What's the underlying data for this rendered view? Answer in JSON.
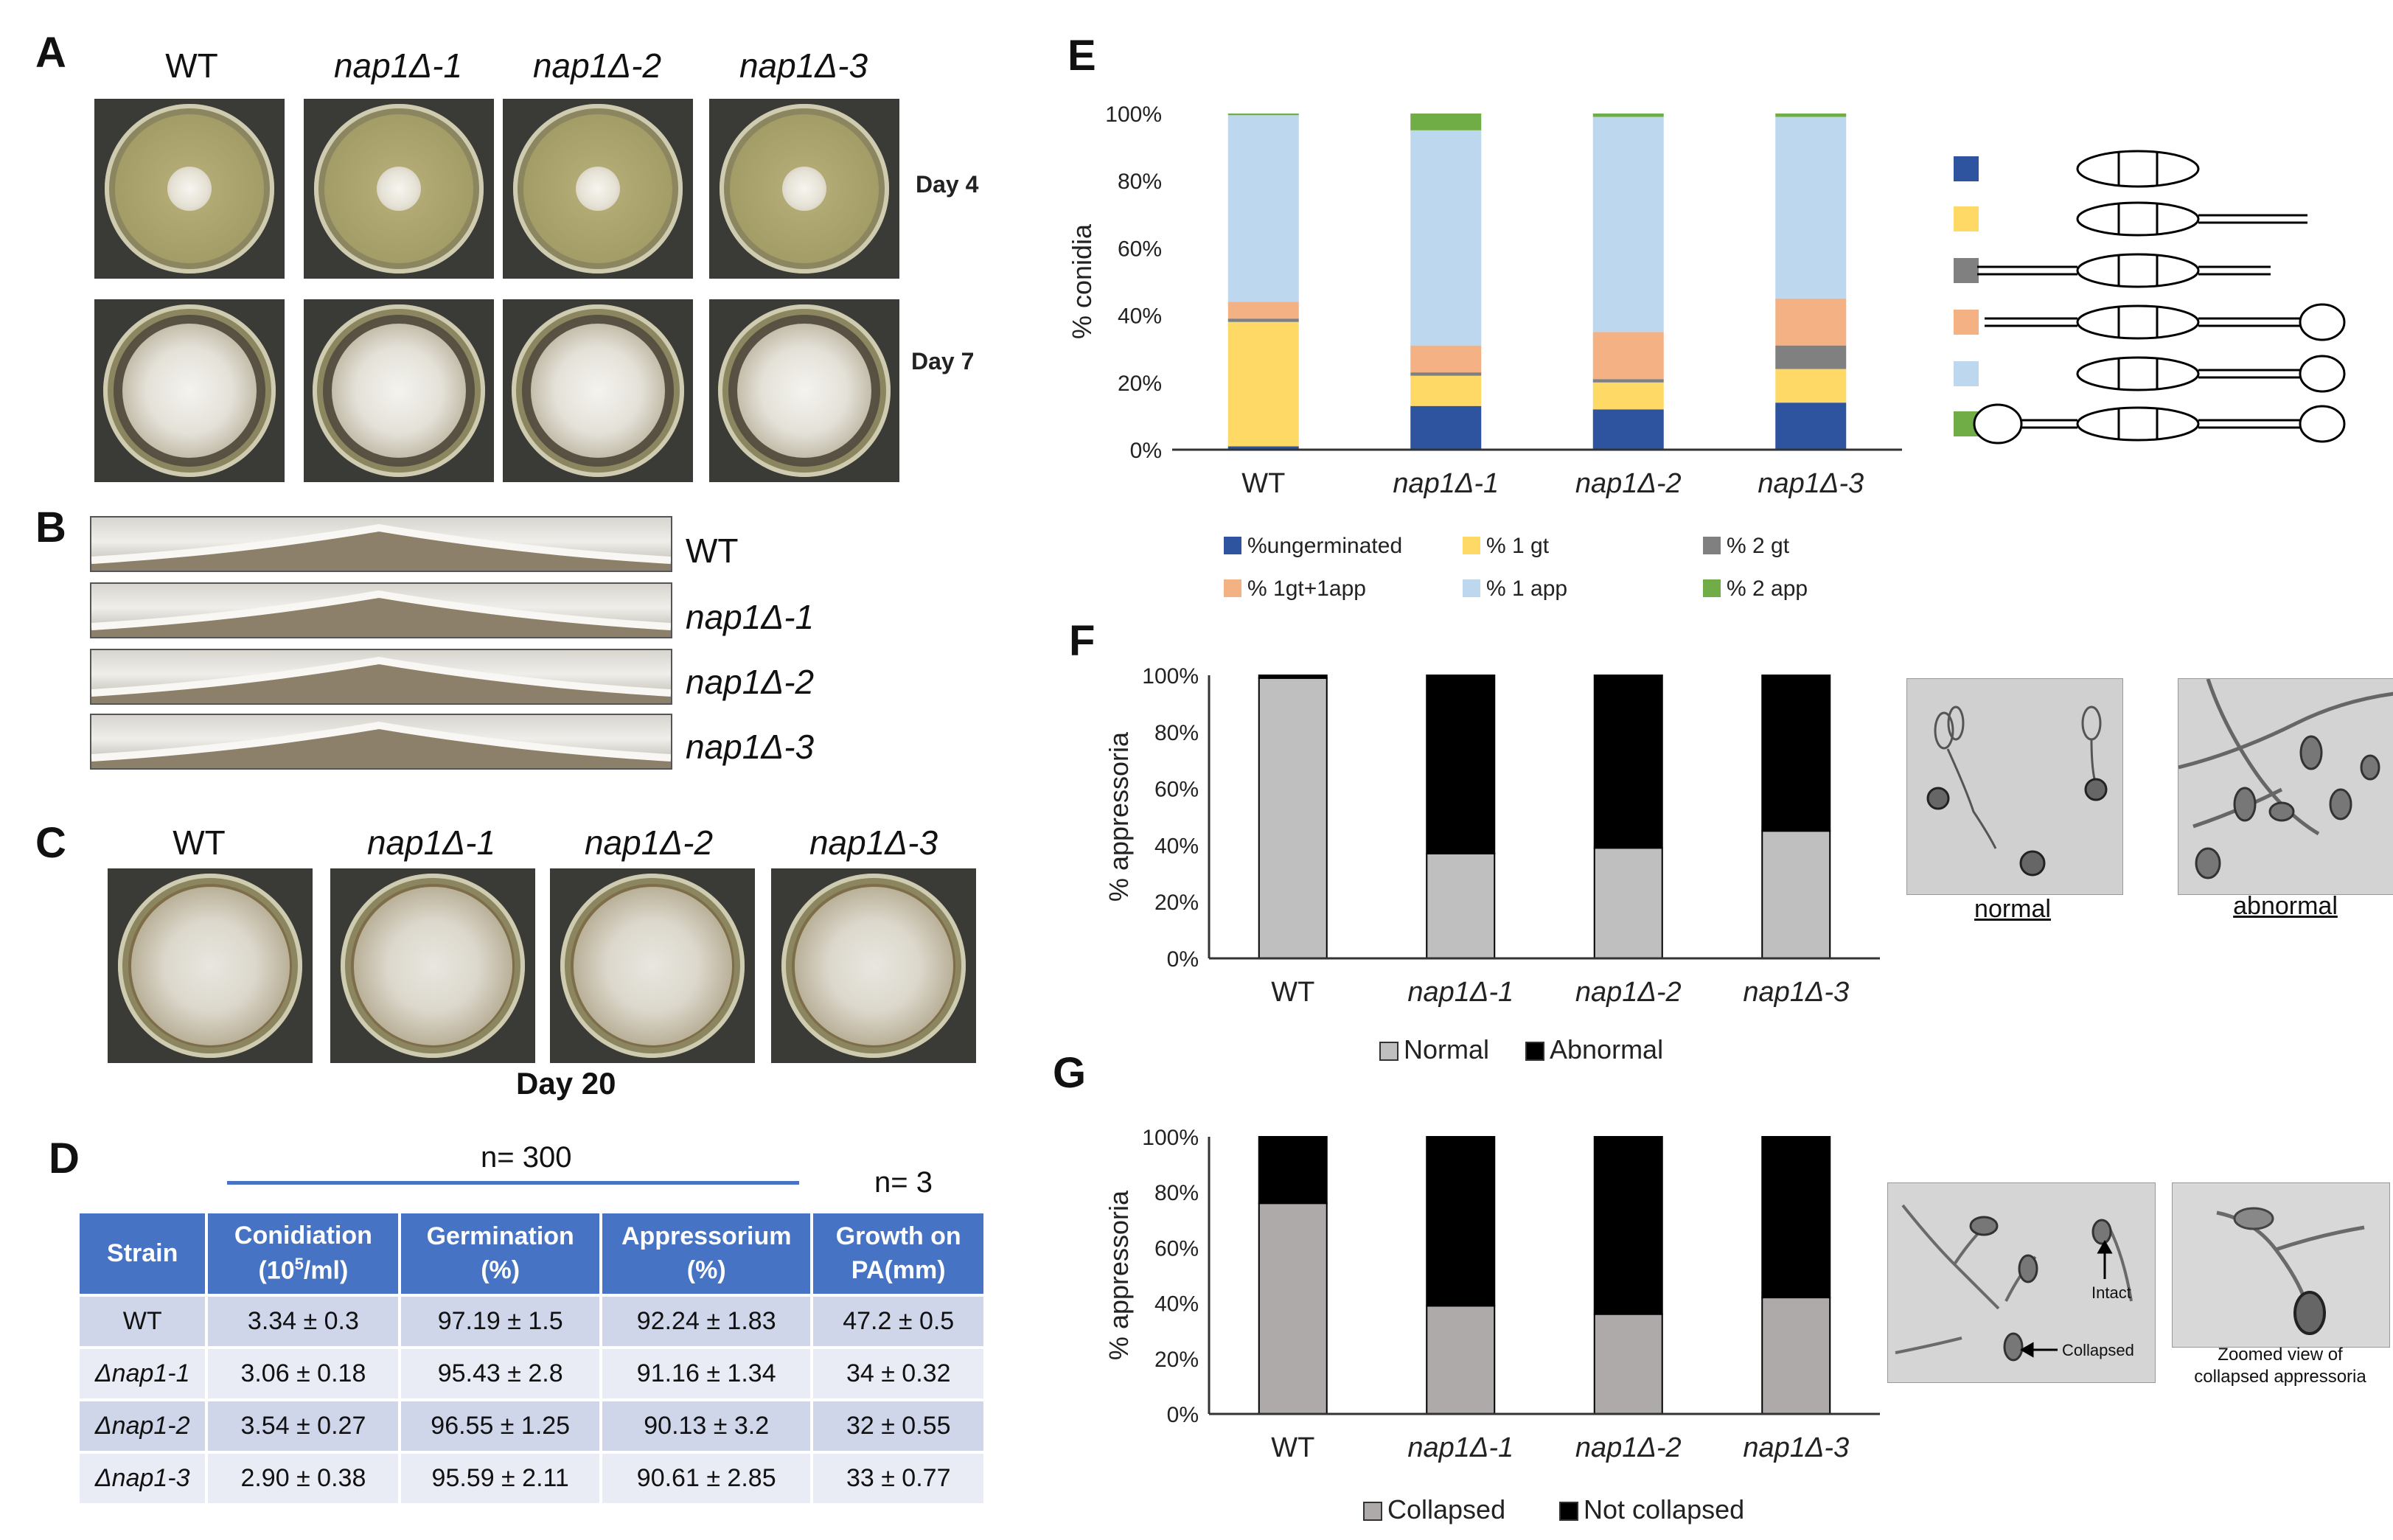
{
  "panels": {
    "A": {
      "letter": "A",
      "strains": [
        "WT",
        "nap1Δ-1",
        "nap1Δ-2",
        "nap1Δ-3"
      ],
      "days": [
        "Day 4",
        "Day 7"
      ]
    },
    "B": {
      "letter": "B",
      "strains": [
        "WT",
        "nap1Δ-1",
        "nap1Δ-2",
        "nap1Δ-3"
      ]
    },
    "C": {
      "letter": "C",
      "strains": [
        "WT",
        "nap1Δ-1",
        "nap1Δ-2",
        "nap1Δ-3"
      ],
      "day": "Day 20"
    },
    "D": {
      "letter": "D",
      "n_left": "n= 300",
      "n_right": "n= 3",
      "headers": [
        "Strain",
        "Conidiation",
        "(10",
        "5",
        "/ml)",
        "Germination",
        "(%)",
        "Appressorium",
        "(%)",
        "Growth on",
        "PA(mm)"
      ],
      "rows": [
        [
          "WT",
          "3.34 ± 0.3",
          "97.19 ± 1.5",
          "92.24 ± 1.83",
          "47.2 ± 0.5"
        ],
        [
          "Δnap1-1",
          "3.06 ± 0.18",
          "95.43 ± 2.8",
          "91.16 ± 1.34",
          "34 ± 0.32"
        ],
        [
          "Δnap1-2",
          "3.54 ± 0.27",
          "96.55 ± 1.25",
          "90.13 ± 3.2",
          "32 ± 0.55"
        ],
        [
          "Δnap1-3",
          "2.90 ± 0.38",
          "95.59 ± 2.11",
          "90.61 ± 2.85",
          "33 ± 0.77"
        ]
      ]
    },
    "E": {
      "letter": "E"
    },
    "F": {
      "letter": "F",
      "captions": [
        "normal",
        "abnormal"
      ]
    },
    "G": {
      "letter": "G",
      "micro_labels": [
        "Intact",
        "Collapsed"
      ],
      "zoom_caption": [
        "Zoomed view of",
        "collapsed appressoria"
      ]
    }
  },
  "chart_data": [
    {
      "type": "bar",
      "stacked": true,
      "panel": "E",
      "ylabel": "% conidia",
      "ylim": [
        0,
        100
      ],
      "yticks": [
        "0%",
        "20%",
        "40%",
        "60%",
        "80%",
        "100%"
      ],
      "categories": [
        "WT",
        "nap1Δ-1",
        "nap1Δ-2",
        "nap1Δ-3"
      ],
      "series": [
        {
          "name": "%ungerminated",
          "color": "#2e54a0",
          "values": [
            1,
            13,
            12,
            14
          ]
        },
        {
          "name": "% 1 gt",
          "color": "#ffd966",
          "values": [
            37,
            9,
            8,
            10
          ]
        },
        {
          "name": "% 2 gt",
          "color": "#808080",
          "values": [
            1,
            1,
            1,
            7
          ]
        },
        {
          "name": "% 1gt+1app",
          "color": "#f4b183",
          "values": [
            5,
            8,
            14,
            14
          ]
        },
        {
          "name": "% 1 app",
          "color": "#bdd7ee",
          "values": [
            55.5,
            64,
            64,
            54
          ]
        },
        {
          "name": "% 2 app",
          "color": "#70ad47",
          "values": [
            0.5,
            5,
            1,
            1
          ]
        }
      ],
      "legend_position": "bottom"
    },
    {
      "type": "bar",
      "stacked": true,
      "panel": "F",
      "ylabel": "% appressoria",
      "ylim": [
        0,
        100
      ],
      "yticks": [
        "0%",
        "20%",
        "40%",
        "60%",
        "80%",
        "100%"
      ],
      "categories": [
        "WT",
        "nap1Δ-1",
        "nap1Δ-2",
        "nap1Δ-3"
      ],
      "series": [
        {
          "name": "Normal",
          "color": "#bfbfbf",
          "values": [
            99,
            37,
            39,
            45
          ]
        },
        {
          "name": "Abnormal",
          "color": "#000000",
          "values": [
            1,
            63,
            61,
            55
          ]
        }
      ],
      "legend_position": "bottom"
    },
    {
      "type": "bar",
      "stacked": true,
      "panel": "G",
      "ylabel": "% appressoria",
      "ylim": [
        0,
        100
      ],
      "yticks": [
        "0%",
        "20%",
        "40%",
        "60%",
        "80%",
        "100%"
      ],
      "categories": [
        "WT",
        "nap1Δ-1",
        "nap1Δ-2",
        "nap1Δ-3"
      ],
      "series": [
        {
          "name": "Collapsed",
          "color": "#aeaaaa",
          "values": [
            76,
            39,
            36,
            42
          ]
        },
        {
          "name": "Not collapsed",
          "color": "#000000",
          "values": [
            24,
            61,
            64,
            58
          ]
        }
      ],
      "legend_position": "bottom"
    }
  ]
}
